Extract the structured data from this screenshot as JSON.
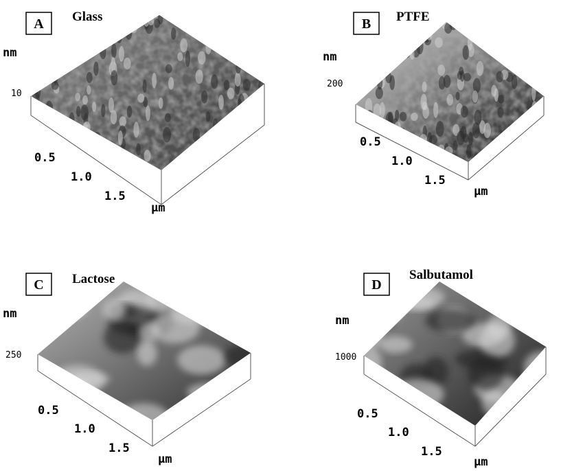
{
  "panels": [
    {
      "label": "A",
      "title": "Glass",
      "z_unit": "nm",
      "z_tick": "10",
      "x_ticks": [
        "0.5",
        "1.0",
        "1.5"
      ],
      "x_unit": "µm"
    },
    {
      "label": "B",
      "title": "PTFE",
      "z_unit": "nm",
      "z_tick": "200",
      "x_ticks": [
        "0.5",
        "1.0",
        "1.5"
      ],
      "x_unit": "µm"
    },
    {
      "label": "C",
      "title": "Lactose",
      "z_unit": "nm",
      "z_tick": "250",
      "x_ticks": [
        "0.5",
        "1.0",
        "1.5"
      ],
      "x_unit": "µm"
    },
    {
      "label": "D",
      "title": "Salbutamol",
      "z_unit": "nm",
      "z_tick": "1000",
      "x_ticks": [
        "0.5",
        "1.0",
        "1.5"
      ],
      "x_unit": "µm"
    }
  ]
}
